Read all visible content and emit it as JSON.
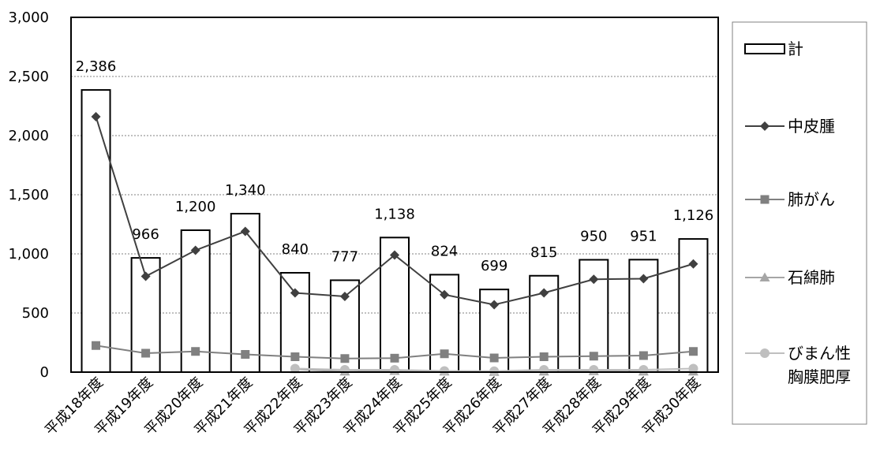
{
  "chart_data": {
    "type": "bar",
    "categories": [
      "平成18年度",
      "平成19年度",
      "平成20年度",
      "平成21年度",
      "平成22年度",
      "平成23年度",
      "平成24年度",
      "平成25年度",
      "平成26年度",
      "平成27年度",
      "平成28年度",
      "平成29年度",
      "平成30年度"
    ],
    "series": [
      {
        "name": "計",
        "type": "bar",
        "color": "#ffffff",
        "stroke": "#000000",
        "values": [
          2386,
          966,
          1200,
          1340,
          840,
          777,
          1138,
          824,
          699,
          815,
          950,
          951,
          1126
        ],
        "data_labels": [
          "2,386",
          "966",
          "1,200",
          "1,340",
          "840",
          "777",
          "1,138",
          "824",
          "699",
          "815",
          "950",
          "951",
          "1,126"
        ]
      },
      {
        "name": "中皮腫",
        "type": "line",
        "marker": "diamond",
        "color": "#404040",
        "values": [
          2160,
          810,
          1030,
          1190,
          670,
          640,
          990,
          655,
          570,
          670,
          785,
          790,
          915
        ]
      },
      {
        "name": "肺がん",
        "type": "line",
        "marker": "square",
        "color": "#808080",
        "values": [
          225,
          160,
          175,
          150,
          130,
          115,
          118,
          155,
          120,
          130,
          135,
          140,
          175
        ]
      },
      {
        "name": "石綿肺",
        "type": "line",
        "marker": "triangle",
        "color": "#a6a6a6",
        "values": [
          null,
          null,
          null,
          null,
          25,
          5,
          10,
          5,
          2,
          5,
          8,
          5,
          5
        ]
      },
      {
        "name_lines": [
          "びまん性",
          "胸膜肥厚"
        ],
        "type": "line",
        "marker": "circle",
        "color": "#bfbfbf",
        "values": [
          null,
          null,
          null,
          null,
          30,
          20,
          20,
          10,
          8,
          20,
          20,
          20,
          30
        ]
      }
    ],
    "ylim": [
      0,
      3000
    ],
    "yticks": [
      "0",
      "500",
      "1,000",
      "1,500",
      "2,000",
      "2,500",
      "3,000"
    ],
    "ytick_values": [
      0,
      500,
      1000,
      1500,
      2000,
      2500,
      3000
    ],
    "grid": true,
    "legend_position": "right"
  }
}
